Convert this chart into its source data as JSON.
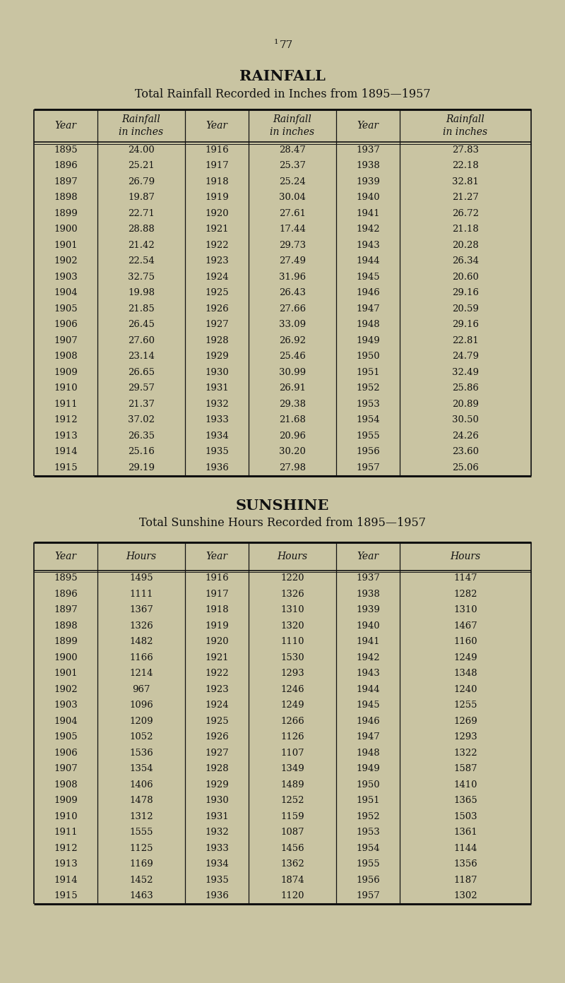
{
  "page_number_super": "1",
  "page_number_main": "77",
  "bg_color": "#c9c4a2",
  "text_color": "#111111",
  "rainfall_title": "RAINFALL",
  "rainfall_subtitle": "Total Rainfall Recorded in Inches from 1895—1957",
  "rainfall_col_headers": [
    "Year",
    "Rainfall\nin inches",
    "Year",
    "Rainfall\nin inches",
    "Year",
    "Rainfall\nin inches"
  ],
  "rainfall_data": [
    [
      "1895",
      "24.00",
      "1916",
      "28.47",
      "1937",
      "27.83"
    ],
    [
      "1896",
      "25.21",
      "1917",
      "25.37",
      "1938",
      "22.18"
    ],
    [
      "1897",
      "26.79",
      "1918",
      "25.24",
      "1939",
      "32.81"
    ],
    [
      "1898",
      "19.87",
      "1919",
      "30.04",
      "1940",
      "21.27"
    ],
    [
      "1899",
      "22.71",
      "1920",
      "27.61",
      "1941",
      "26.72"
    ],
    [
      "1900",
      "28.88",
      "1921",
      "17.44",
      "1942",
      "21.18"
    ],
    [
      "1901",
      "21.42",
      "1922",
      "29.73",
      "1943",
      "20.28"
    ],
    [
      "1902",
      "22.54",
      "1923",
      "27.49",
      "1944",
      "26.34"
    ],
    [
      "1903",
      "32.75",
      "1924",
      "31.96",
      "1945",
      "20.60"
    ],
    [
      "1904",
      "19.98",
      "1925",
      "26.43",
      "1946",
      "29.16"
    ],
    [
      "1905",
      "21.85",
      "1926",
      "27.66",
      "1947",
      "20.59"
    ],
    [
      "1906",
      "26.45",
      "1927",
      "33.09",
      "1948",
      "29.16"
    ],
    [
      "1907",
      "27.60",
      "1928",
      "26.92",
      "1949",
      "22.81"
    ],
    [
      "1908",
      "23.14",
      "1929",
      "25.46",
      "1950",
      "24.79"
    ],
    [
      "1909",
      "26.65",
      "1930",
      "30.99",
      "1951",
      "32.49"
    ],
    [
      "1910",
      "29.57",
      "1931",
      "26.91",
      "1952",
      "25.86"
    ],
    [
      "1911",
      "21.37",
      "1932",
      "29.38",
      "1953",
      "20.89"
    ],
    [
      "1912",
      "37.02",
      "1933",
      "21.68",
      "1954",
      "30.50"
    ],
    [
      "1913",
      "26.35",
      "1934",
      "20.96",
      "1955",
      "24.26"
    ],
    [
      "1914",
      "25.16",
      "1935",
      "30.20",
      "1956",
      "23.60"
    ],
    [
      "1915",
      "29.19",
      "1936",
      "27.98",
      "1957",
      "25.06"
    ]
  ],
  "sunshine_title": "SUNSHINE",
  "sunshine_subtitle": "Total Sunshine Hours Recorded from 1895—1957",
  "sunshine_col_headers": [
    "Year",
    "Hours",
    "Year",
    "Hours",
    "Year",
    "Hours"
  ],
  "sunshine_data": [
    [
      "1895",
      "1495",
      "1916",
      "1220",
      "1937",
      "1147"
    ],
    [
      "1896",
      "1111",
      "1917",
      "1326",
      "1938",
      "1282"
    ],
    [
      "1897",
      "1367",
      "1918",
      "1310",
      "1939",
      "1310"
    ],
    [
      "1898",
      "1326",
      "1919",
      "1320",
      "1940",
      "1467"
    ],
    [
      "1899",
      "1482",
      "1920",
      "1110",
      "1941",
      "1160"
    ],
    [
      "1900",
      "1166",
      "1921",
      "1530",
      "1942",
      "1249"
    ],
    [
      "1901",
      "1214",
      "1922",
      "1293",
      "1943",
      "1348"
    ],
    [
      "1902",
      "967",
      "1923",
      "1246",
      "1944",
      "1240"
    ],
    [
      "1903",
      "1096",
      "1924",
      "1249",
      "1945",
      "1255"
    ],
    [
      "1904",
      "1209",
      "1925",
      "1266",
      "1946",
      "1269"
    ],
    [
      "1905",
      "1052",
      "1926",
      "1126",
      "1947",
      "1293"
    ],
    [
      "1906",
      "1536",
      "1927",
      "1107",
      "1948",
      "1322"
    ],
    [
      "1907",
      "1354",
      "1928",
      "1349",
      "1949",
      "1587"
    ],
    [
      "1908",
      "1406",
      "1929",
      "1489",
      "1950",
      "1410"
    ],
    [
      "1909",
      "1478",
      "1930",
      "1252",
      "1951",
      "1365"
    ],
    [
      "1910",
      "1312",
      "1931",
      "1159",
      "1952",
      "1503"
    ],
    [
      "1911",
      "1555",
      "1932",
      "1087",
      "1953",
      "1361"
    ],
    [
      "1912",
      "1125",
      "1933",
      "1456",
      "1954",
      "1144"
    ],
    [
      "1913",
      "1169",
      "1934",
      "1362",
      "1955",
      "1356"
    ],
    [
      "1914",
      "1452",
      "1935",
      "1874",
      "1956",
      "1187"
    ],
    [
      "1915",
      "1463",
      "1936",
      "1120",
      "1957",
      "1302"
    ]
  ]
}
